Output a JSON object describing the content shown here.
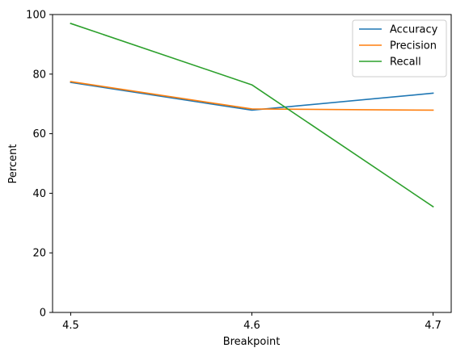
{
  "chart_data": {
    "type": "line",
    "title": "",
    "xlabel": "Breakpoint",
    "ylabel": "Percent",
    "x": [
      4.5,
      4.6,
      4.7
    ],
    "x_tick_labels": [
      "4.5",
      "4.6",
      "4.7"
    ],
    "xlim": [
      4.49,
      4.71
    ],
    "ylim": [
      0,
      100
    ],
    "y_ticks": [
      0,
      20,
      40,
      60,
      80,
      100
    ],
    "y_tick_labels": [
      "0",
      "20",
      "40",
      "60",
      "80",
      "100"
    ],
    "grid": false,
    "legend_position": "top-right",
    "series": [
      {
        "name": "Accuracy",
        "color": "#1f77b4",
        "values": [
          77.2,
          67.9,
          73.6
        ]
      },
      {
        "name": "Precision",
        "color": "#ff7f0e",
        "values": [
          77.5,
          68.3,
          67.9
        ]
      },
      {
        "name": "Recall",
        "color": "#2ca02c",
        "values": [
          97.0,
          76.4,
          35.5
        ]
      }
    ]
  }
}
